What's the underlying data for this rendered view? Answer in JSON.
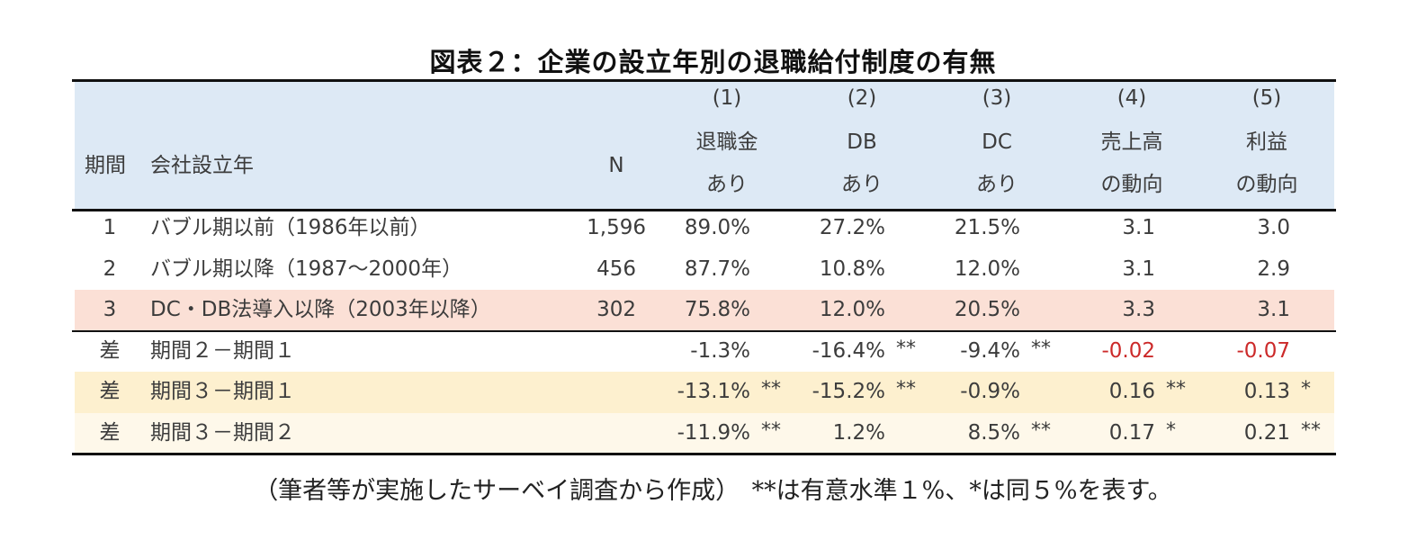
{
  "title": "図表２：企業の設立年別の退職給付制度の有無",
  "header": {
    "period": "期間",
    "founded": "会社設立年",
    "n": "N",
    "cols": [
      {
        "num": "(1)",
        "line1": "退職金",
        "line2": "あり"
      },
      {
        "num": "(2)",
        "line1": "DB",
        "line2": "あり"
      },
      {
        "num": "(3)",
        "line1": "DC",
        "line2": "あり"
      },
      {
        "num": "(4)",
        "line1": "売上高",
        "line2": "の動向"
      },
      {
        "num": "(5)",
        "line1": "利益",
        "line2": "の動向"
      }
    ]
  },
  "rows": [
    {
      "period": "1",
      "label": "バブル期以前（1986年以前）",
      "n": "1,596",
      "v": [
        "89.0%",
        "27.2%",
        "21.5%",
        "3.1",
        "3.0"
      ],
      "s": [
        "",
        "",
        "",
        "",
        ""
      ]
    },
    {
      "period": "2",
      "label": "バブル期以降（1987～2000年）",
      "n": "456",
      "v": [
        "87.7%",
        "10.8%",
        "12.0%",
        "3.1",
        "2.9"
      ],
      "s": [
        "",
        "",
        "",
        "",
        ""
      ]
    },
    {
      "period": "3",
      "label": "DC・DB法導入以降（2003年以降）",
      "n": "302",
      "v": [
        "75.8%",
        "12.0%",
        "20.5%",
        "3.3",
        "3.1"
      ],
      "s": [
        "",
        "",
        "",
        "",
        ""
      ]
    },
    {
      "period": "差",
      "label": "期間２－期間１",
      "n": "",
      "v": [
        "-1.3%",
        "-16.4%",
        "-9.4%",
        "-0.02",
        "-0.07"
      ],
      "s": [
        "",
        "**",
        "**",
        "",
        ""
      ]
    },
    {
      "period": "差",
      "label": "期間３－期間１",
      "n": "",
      "v": [
        "-13.1%",
        "-15.2%",
        "-0.9%",
        "0.16",
        "0.13"
      ],
      "s": [
        "**",
        "**",
        "",
        "**",
        "*"
      ]
    },
    {
      "period": "差",
      "label": "期間３－期間２",
      "n": "",
      "v": [
        "-11.9%",
        "1.2%",
        "8.5%",
        "0.17",
        "0.21"
      ],
      "s": [
        "**",
        "",
        "**",
        "*",
        "**"
      ]
    }
  ],
  "note": "（筆者等が実施したサーベイ調査から作成）　**は有意水準１%、*は同５%を表す。",
  "colors": {
    "header_bg": "#dde9f5",
    "row3_bg": "#fbe0d6",
    "row5_bg": "#fdf0cf",
    "row6_bg": "#fef8ea",
    "negative_text": "#cc2a2a"
  }
}
